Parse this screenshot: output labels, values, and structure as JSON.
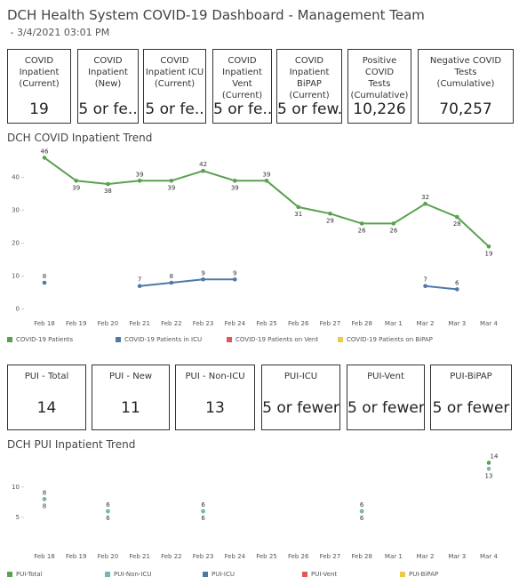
{
  "header": {
    "title": "DCH Health System COVID-19 Dashboard - Management Team",
    "subtitle": " - 3/4/2021 03:01 PM"
  },
  "kpis": [
    {
      "label": "COVID\nInpatient\n(Current)",
      "value": 19
    },
    {
      "label": "COVID\nInpatient\n(New)",
      "value": "5 or fe.."
    },
    {
      "label": "COVID\nInpatient ICU\n(Current)",
      "value": "5 or fe.."
    },
    {
      "label": "COVID\nInpatient Vent\n(Current)",
      "value": "5 or fe.."
    },
    {
      "label": "COVID\nInpatient BiPAP\n(Current)",
      "value": "5 or few.."
    },
    {
      "label": "Positive COVID\nTests\n(Cumulative)",
      "value": "10,226"
    },
    {
      "label": "Negative COVID\nTests\n(Cumulative)",
      "value": "70,257"
    }
  ],
  "pui_kpis": [
    {
      "label": "PUI - Total",
      "value": 14
    },
    {
      "label": "PUI - New",
      "value": 11
    },
    {
      "label": "PUI - Non-ICU",
      "value": 13
    },
    {
      "label": "PUI-ICU",
      "value": "5 or fewer"
    },
    {
      "label": "PUI-Vent",
      "value": "5 or fewer"
    },
    {
      "label": "PUI-BiPAP",
      "value": "5 or fewer"
    }
  ],
  "chart_data": [
    {
      "type": "line",
      "title": "DCH COVID Inpatient Trend",
      "categories": [
        "Feb 18",
        "Feb 19",
        "Feb 20",
        "Feb 21",
        "Feb 22",
        "Feb 23",
        "Feb 24",
        "Feb 25",
        "Feb 26",
        "Feb 27",
        "Feb 28",
        "Mar 1",
        "Mar 2",
        "Mar 3",
        "Mar 4"
      ],
      "series": [
        {
          "name": "COVID-19 Patients",
          "color": "#59a14f",
          "values": [
            46,
            39,
            38,
            39,
            39,
            42,
            39,
            39,
            31,
            29,
            26,
            26,
            32,
            28,
            19
          ]
        },
        {
          "name": "COVID-19 Patients in ICU",
          "color": "#4e79a7",
          "values": [
            8,
            null,
            null,
            7,
            8,
            9,
            9,
            null,
            null,
            null,
            null,
            null,
            7,
            6,
            null
          ]
        },
        {
          "name": "COVID-19 Patients on Vent",
          "color": "#e15759",
          "values": [
            null,
            null,
            null,
            null,
            null,
            null,
            null,
            null,
            null,
            null,
            null,
            null,
            null,
            null,
            null
          ]
        },
        {
          "name": "COVID-19 Patients on BiPAP",
          "color": "#edc948",
          "values": [
            null,
            null,
            null,
            null,
            null,
            null,
            null,
            null,
            null,
            null,
            null,
            null,
            null,
            null,
            null
          ]
        }
      ],
      "ylim": [
        -2,
        48
      ],
      "yticks": [
        0,
        10,
        20,
        30,
        40
      ],
      "grid": false,
      "legend": "bottom"
    },
    {
      "type": "line",
      "title": "DCH PUI Inpatient Trend",
      "categories": [
        "Feb 18",
        "Feb 19",
        "Feb 20",
        "Feb 21",
        "Feb 22",
        "Feb 23",
        "Feb 24",
        "Feb 25",
        "Feb 26",
        "Feb 27",
        "Feb 28",
        "Mar 1",
        "Mar 2",
        "Mar 3",
        "Mar 4"
      ],
      "series": [
        {
          "name": "PUI-Total",
          "color": "#59a14f",
          "values": [
            8,
            null,
            6,
            null,
            null,
            6,
            null,
            null,
            null,
            null,
            6,
            null,
            null,
            null,
            14
          ]
        },
        {
          "name": "PUI-Non-ICU",
          "color": "#76b7b2",
          "values": [
            8,
            null,
            6,
            null,
            null,
            6,
            null,
            null,
            null,
            null,
            6,
            null,
            null,
            null,
            13
          ]
        },
        {
          "name": "PUI-ICU",
          "color": "#4e79a7",
          "values": [
            null,
            null,
            null,
            null,
            null,
            null,
            null,
            null,
            null,
            null,
            null,
            null,
            null,
            null,
            null
          ]
        },
        {
          "name": "PUI-Vent",
          "color": "#e15759",
          "values": [
            null,
            null,
            null,
            null,
            null,
            null,
            null,
            null,
            null,
            null,
            null,
            null,
            null,
            null,
            null
          ]
        },
        {
          "name": "PUI-BiPAP",
          "color": "#edc948",
          "values": [
            null,
            null,
            null,
            null,
            null,
            null,
            null,
            null,
            null,
            null,
            null,
            null,
            null,
            null,
            null
          ]
        }
      ],
      "ylim": [
        0,
        17
      ],
      "yticks": [
        5,
        10
      ],
      "grid": false,
      "legend": "bottom"
    }
  ]
}
